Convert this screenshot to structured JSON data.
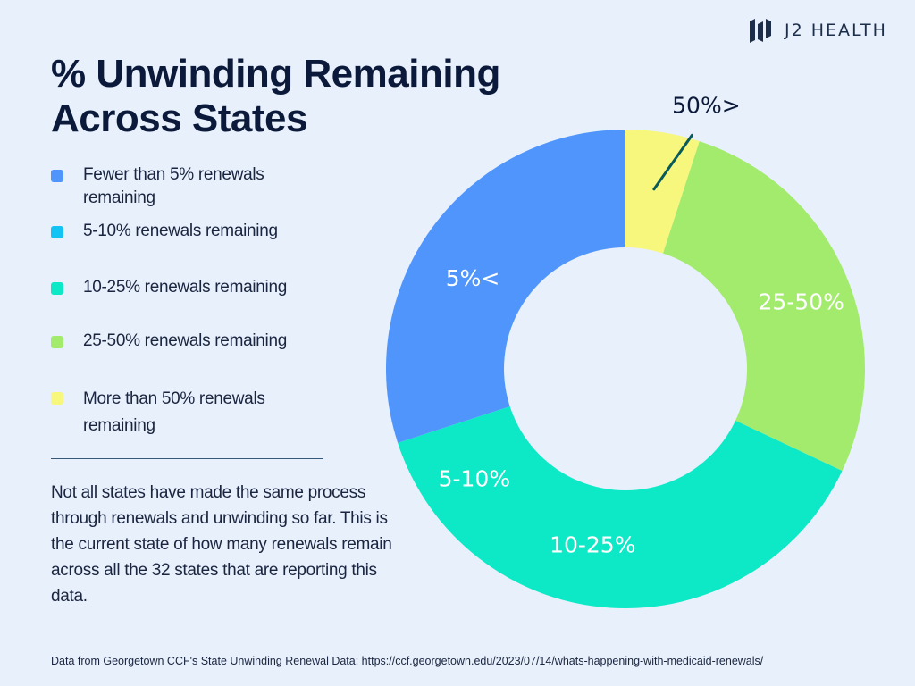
{
  "brand": {
    "name": "J2 HEALTH"
  },
  "title": "% Unwinding Remaining Across States",
  "legend": [
    {
      "label": "Fewer than 5% renewals remaining",
      "color": "#4f95fb"
    },
    {
      "label": "5-10% renewals remaining",
      "color": "#12c3f3"
    },
    {
      "label": "10-25% renewals remaining",
      "color": "#0de8c6"
    },
    {
      "label": "25-50% renewals remaining",
      "color": "#a2eb6c"
    },
    {
      "label": "More than 50% renewals remaining",
      "color": "#f6f77c"
    }
  ],
  "description": "Not all states have made the same process through renewals and unwinding so far. This is the current state of how many renewals remain across all the 32 states that are reporting this data.",
  "source": "Data from Georgetown CCF's State Unwinding Renewal Data: https://ccf.georgetown.edu/2023/07/14/whats-happening-with-medicaid-renewals/",
  "chart_data": {
    "type": "pie",
    "variant": "donut",
    "slices": [
      {
        "label": "50%>",
        "share_of_states": 0.05,
        "color": "#f6f77c",
        "label_placement": "outside-leader"
      },
      {
        "label": "25-50%",
        "share_of_states": 0.27,
        "color": "#a2eb6c",
        "label_placement": "inside"
      },
      {
        "label": "10-25%",
        "share_of_states": 0.38,
        "color": "#0de8c6",
        "label_placement": "inside"
      },
      {
        "label": "5%<",
        "share_of_states": 0.3,
        "color": "#4f95fb",
        "label_placement": "inside"
      }
    ],
    "center_fill": "#e8f0fb",
    "label_color": "#ffffff",
    "inside_labels": [
      {
        "text": "5-10%",
        "over_slice": "10-25%"
      }
    ]
  }
}
